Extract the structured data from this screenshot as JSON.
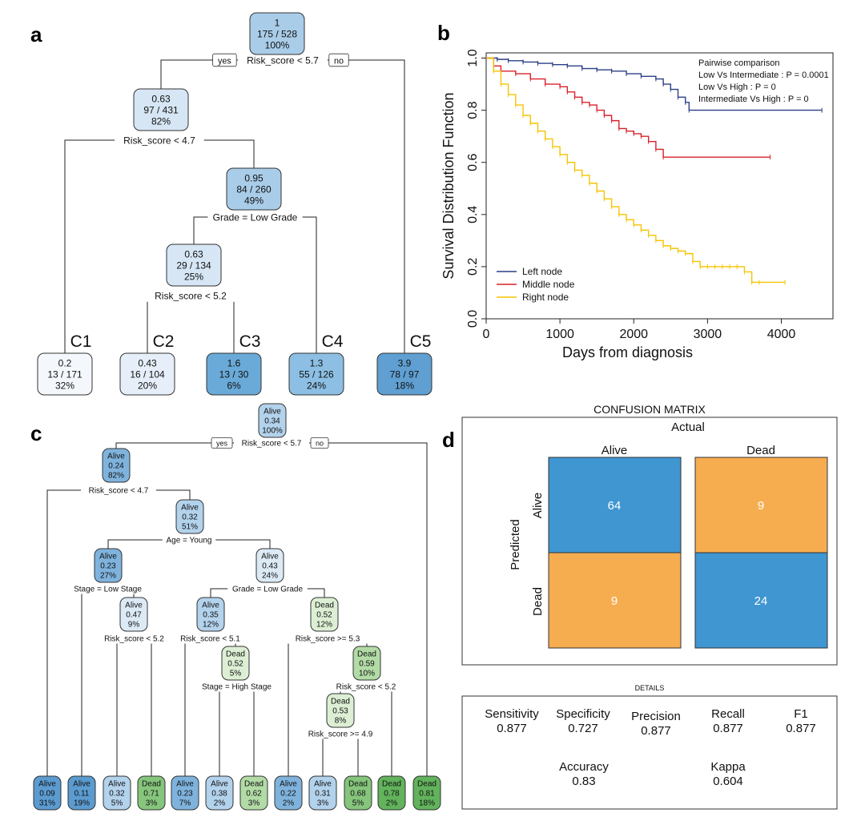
{
  "panels": {
    "a": "a",
    "b": "b",
    "c": "c",
    "d": "d"
  },
  "tree_a": {
    "nodes": {
      "root": [
        "1",
        "175 / 528",
        "100%"
      ],
      "n2": [
        "0.63",
        "97 / 431",
        "82%"
      ],
      "n3": [
        "0.95",
        "84 / 260",
        "49%"
      ],
      "n4": [
        "0.63",
        "29 / 134",
        "25%"
      ],
      "c1": [
        "0.2",
        "13 / 171",
        "32%"
      ],
      "c2": [
        "0.43",
        "16 / 104",
        "20%"
      ],
      "c3": [
        "1.6",
        "13 / 30",
        "6%"
      ],
      "c4": [
        "1.3",
        "55 / 126",
        "24%"
      ],
      "c5": [
        "3.9",
        "78 / 97",
        "18%"
      ]
    },
    "splits": {
      "s1": "Risk_score < 5.7",
      "s2": "Risk_score < 4.7",
      "s3": "Grade = Low Grade",
      "s4": "Risk_score < 5.2"
    },
    "yes": "yes",
    "no": "no",
    "clusters": {
      "c1": "C1",
      "c2": "C2",
      "c3": "C3",
      "c4": "C4",
      "c5": "C5"
    }
  },
  "chart_data": {
    "type": "line",
    "xlabel": "Days from diagnosis",
    "ylabel": "Survival Distribution Function",
    "xlim": [
      0,
      4700
    ],
    "ylim": [
      0,
      1.02
    ],
    "xticks": [
      0,
      1000,
      2000,
      3000,
      4000
    ],
    "yticks": [
      "0.0",
      "0.2",
      "0.4",
      "0.6",
      "0.8",
      "1.0"
    ],
    "legend_position": "bottom-left",
    "annotation": [
      "Pairwise comparison",
      "Low Vs Intermediate : P = 0.0001",
      "Low Vs High : P = 0",
      "Intermediate Vs High : P = 0"
    ],
    "series": [
      {
        "name": "Left node",
        "color": "#2b3f86",
        "x": [
          0,
          150,
          300,
          500,
          700,
          900,
          1100,
          1300,
          1500,
          1700,
          1900,
          2100,
          2300,
          2400,
          2500,
          2600,
          2700,
          2750,
          4550
        ],
        "y": [
          1.0,
          0.995,
          0.99,
          0.985,
          0.98,
          0.975,
          0.97,
          0.96,
          0.955,
          0.95,
          0.94,
          0.93,
          0.92,
          0.9,
          0.88,
          0.85,
          0.83,
          0.8,
          0.8
        ]
      },
      {
        "name": "Middle node",
        "color": "#d9212b",
        "x": [
          0,
          100,
          200,
          400,
          600,
          800,
          1000,
          1100,
          1200,
          1300,
          1400,
          1500,
          1600,
          1700,
          1800,
          1900,
          2000,
          2100,
          2200,
          2300,
          2400,
          3850
        ],
        "y": [
          1.0,
          0.97,
          0.95,
          0.94,
          0.92,
          0.9,
          0.89,
          0.87,
          0.85,
          0.83,
          0.82,
          0.8,
          0.78,
          0.76,
          0.73,
          0.72,
          0.71,
          0.7,
          0.68,
          0.65,
          0.62,
          0.62
        ]
      },
      {
        "name": "Right node",
        "color": "#f5c400",
        "x": [
          0,
          100,
          200,
          300,
          400,
          500,
          600,
          700,
          800,
          900,
          1000,
          1100,
          1200,
          1300,
          1400,
          1500,
          1600,
          1700,
          1800,
          1900,
          2000,
          2100,
          2200,
          2300,
          2400,
          2500,
          2600,
          2700,
          2800,
          2900,
          3000,
          3100,
          3200,
          3300,
          3400,
          3500,
          3600,
          3700,
          4050
        ],
        "y": [
          1.0,
          0.95,
          0.9,
          0.86,
          0.82,
          0.78,
          0.75,
          0.72,
          0.69,
          0.66,
          0.63,
          0.6,
          0.57,
          0.55,
          0.52,
          0.49,
          0.46,
          0.43,
          0.4,
          0.38,
          0.36,
          0.34,
          0.32,
          0.3,
          0.28,
          0.27,
          0.26,
          0.25,
          0.22,
          0.2,
          0.2,
          0.2,
          0.2,
          0.2,
          0.2,
          0.18,
          0.14,
          0.14,
          0.14
        ]
      }
    ]
  },
  "tree_c": {
    "nodes": {
      "r": [
        "Alive",
        "0.34",
        "100%"
      ],
      "l1": [
        "Alive",
        "0.24",
        "82%"
      ],
      "l2": [
        "Alive",
        "0.32",
        "51%"
      ],
      "l3": [
        "Alive",
        "0.23",
        "27%"
      ],
      "l4": [
        "Alive",
        "0.47",
        "9%"
      ],
      "m1": [
        "Alive",
        "0.43",
        "24%"
      ],
      "m2": [
        "Alive",
        "0.35",
        "12%"
      ],
      "m3": [
        "Dead",
        "0.52",
        "5%"
      ],
      "d1": [
        "Dead",
        "0.52",
        "12%"
      ],
      "d2": [
        "Dead",
        "0.59",
        "10%"
      ],
      "d3": [
        "Dead",
        "0.53",
        "8%"
      ],
      "leaves": [
        [
          "Alive",
          "0.09",
          "31%"
        ],
        [
          "Alive",
          "0.11",
          "19%"
        ],
        [
          "Alive",
          "0.32",
          "5%"
        ],
        [
          "Dead",
          "0.71",
          "3%"
        ],
        [
          "Alive",
          "0.23",
          "7%"
        ],
        [
          "Alive",
          "0.38",
          "2%"
        ],
        [
          "Dead",
          "0.62",
          "3%"
        ],
        [
          "Alive",
          "0.22",
          "2%"
        ],
        [
          "Alive",
          "0.31",
          "3%"
        ],
        [
          "Dead",
          "0.68",
          "5%"
        ],
        [
          "Dead",
          "0.78",
          "2%"
        ],
        [
          "Dead",
          "0.81",
          "18%"
        ]
      ]
    },
    "splits": {
      "s1": "Risk_score < 5.7",
      "s2": "Risk_score < 4.7",
      "s3": "Age = Young",
      "s4": "Stage = Low Stage",
      "s5": "Risk_score < 5.2",
      "s6": "Grade = Low Grade",
      "s7": "Risk_score < 5.1",
      "s8": "Stage = High Stage",
      "s9": "Risk_score >= 5.3",
      "s10": "Risk_score < 5.2",
      "s11": "Risk_score >= 4.9"
    },
    "yes": "yes",
    "no": "no"
  },
  "confusion": {
    "title": "CONFUSION MATRIX",
    "actual": "Actual",
    "predicted": "Predicted",
    "cols": [
      "Alive",
      "Dead"
    ],
    "rows": [
      "Alive",
      "Dead"
    ],
    "cells": [
      "64",
      "9",
      "9",
      "24"
    ],
    "colors": {
      "correct": "#3f96d1",
      "wrong": "#f6ad50"
    }
  },
  "details": {
    "title": "DETAILS",
    "metrics": [
      {
        "label": "Sensitivity",
        "value": "0.877"
      },
      {
        "label": "Specificity",
        "value": "0.727"
      },
      {
        "label": "Precision",
        "value": "0.877"
      },
      {
        "label": "Recall",
        "value": "0.877"
      },
      {
        "label": "F1",
        "value": "0.877"
      },
      {
        "label": "Accuracy",
        "value": "0.83"
      },
      {
        "label": "Kappa",
        "value": "0.604"
      }
    ]
  }
}
